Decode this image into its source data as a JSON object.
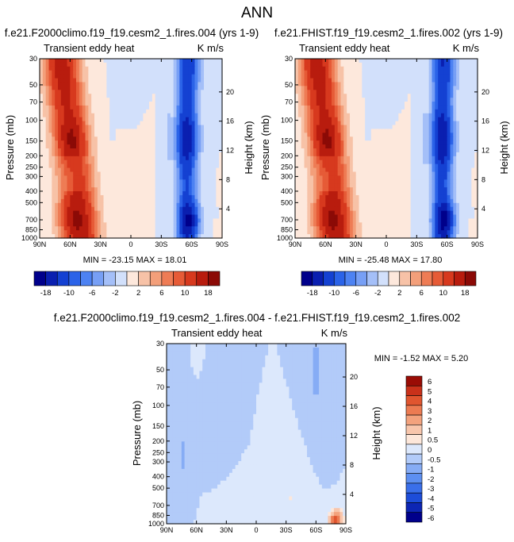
{
  "page_title": "ANN",
  "colors": {
    "seq": [
      "#00008b",
      "#0a1fb0",
      "#1441d2",
      "#2b63e8",
      "#4d82f2",
      "#779ff5",
      "#a4bff8",
      "#d2e0fb",
      "#fde8dc",
      "#f7c2a7",
      "#f39f7a",
      "#ee7c55",
      "#e65b37",
      "#d7391e",
      "#b81c0e",
      "#8b0a06"
    ],
    "diff_colorbar": [
      "#00008b",
      "#0d26b4",
      "#1d4dd9",
      "#3a6fea",
      "#5d8ff1",
      "#86acf5",
      "#b2cbf9",
      "#dce8fc",
      "#fde7da",
      "#f8c6ac",
      "#f3a27d",
      "#ec7b52",
      "#e0552f",
      "#c9311a",
      "#9a0c05"
    ]
  },
  "chart_data": [
    {
      "type": "heatmap",
      "panel": "left",
      "title": "f.e21.F2000climo.f19_f19.cesm2_1.fires.004 (yrs 1-9)",
      "subtitle_left": "Transient eddy heat",
      "subtitle_right": "K m/s",
      "xlabel": "",
      "ylabel": "Pressure (mb)",
      "ylabel_right": "Height (km)",
      "x_ticks": [
        "90N",
        "60N",
        "30N",
        "0",
        "30S",
        "60S",
        "90S"
      ],
      "y_ticks": [
        "30",
        "50",
        "70",
        "100",
        "150",
        "200",
        "250",
        "300",
        "400",
        "500",
        "700",
        "850",
        "1000"
      ],
      "y_ticks_right": [
        "20",
        "16",
        "12",
        "8",
        "4"
      ],
      "stats": "MIN = -23.15  MAX =  18.01",
      "min": -23.15,
      "max": 18.01
    },
    {
      "type": "heatmap",
      "panel": "right",
      "title": "f.e21.FHIST.f19_f19.cesm2_1.fires.002 (yrs 1-9)",
      "subtitle_left": "Transient eddy heat",
      "subtitle_right": "K m/s",
      "xlabel": "",
      "ylabel": "Pressure (mb)",
      "ylabel_right": "Height (km)",
      "x_ticks": [
        "90N",
        "60N",
        "30N",
        "0",
        "30S",
        "60S",
        "90S"
      ],
      "y_ticks": [
        "30",
        "50",
        "70",
        "100",
        "150",
        "200",
        "250",
        "300",
        "400",
        "500",
        "700",
        "850",
        "1000"
      ],
      "y_ticks_right": [
        "20",
        "16",
        "12",
        "8",
        "4"
      ],
      "stats": "MIN = -25.48  MAX =  17.80",
      "min": -25.48,
      "max": 17.8
    },
    {
      "type": "heatmap",
      "panel": "diff",
      "title": "f.e21.F2000climo.f19_f19.cesm2_1.fires.004 - f.e21.FHIST.f19_f19.cesm2_1.fires.002",
      "subtitle_left": "Transient eddy heat",
      "subtitle_right": "K m/s",
      "xlabel": "",
      "ylabel": "Pressure (mb)",
      "ylabel_right": "Height (km)",
      "x_ticks": [
        "90N",
        "60N",
        "30N",
        "0",
        "30S",
        "60S",
        "90S"
      ],
      "y_ticks": [
        "30",
        "50",
        "70",
        "100",
        "150",
        "200",
        "250",
        "300",
        "400",
        "500",
        "700",
        "850",
        "1000"
      ],
      "y_ticks_right": [
        "20",
        "16",
        "12",
        "8",
        "4"
      ],
      "stats": "MIN = -1.52  MAX =  5.20",
      "min": -1.52,
      "max": 5.2
    }
  ],
  "colorbar_main": {
    "labels": [
      "-18",
      "-10",
      "-6",
      "-2",
      "2",
      "6",
      "10",
      "18"
    ]
  },
  "colorbar_diff": {
    "labels": [
      "6",
      "5",
      "4",
      "3",
      "2",
      "1",
      "0.5",
      "0",
      "-0.5",
      "-1",
      "-2",
      "-3",
      "-4",
      "-5",
      "-6"
    ]
  }
}
